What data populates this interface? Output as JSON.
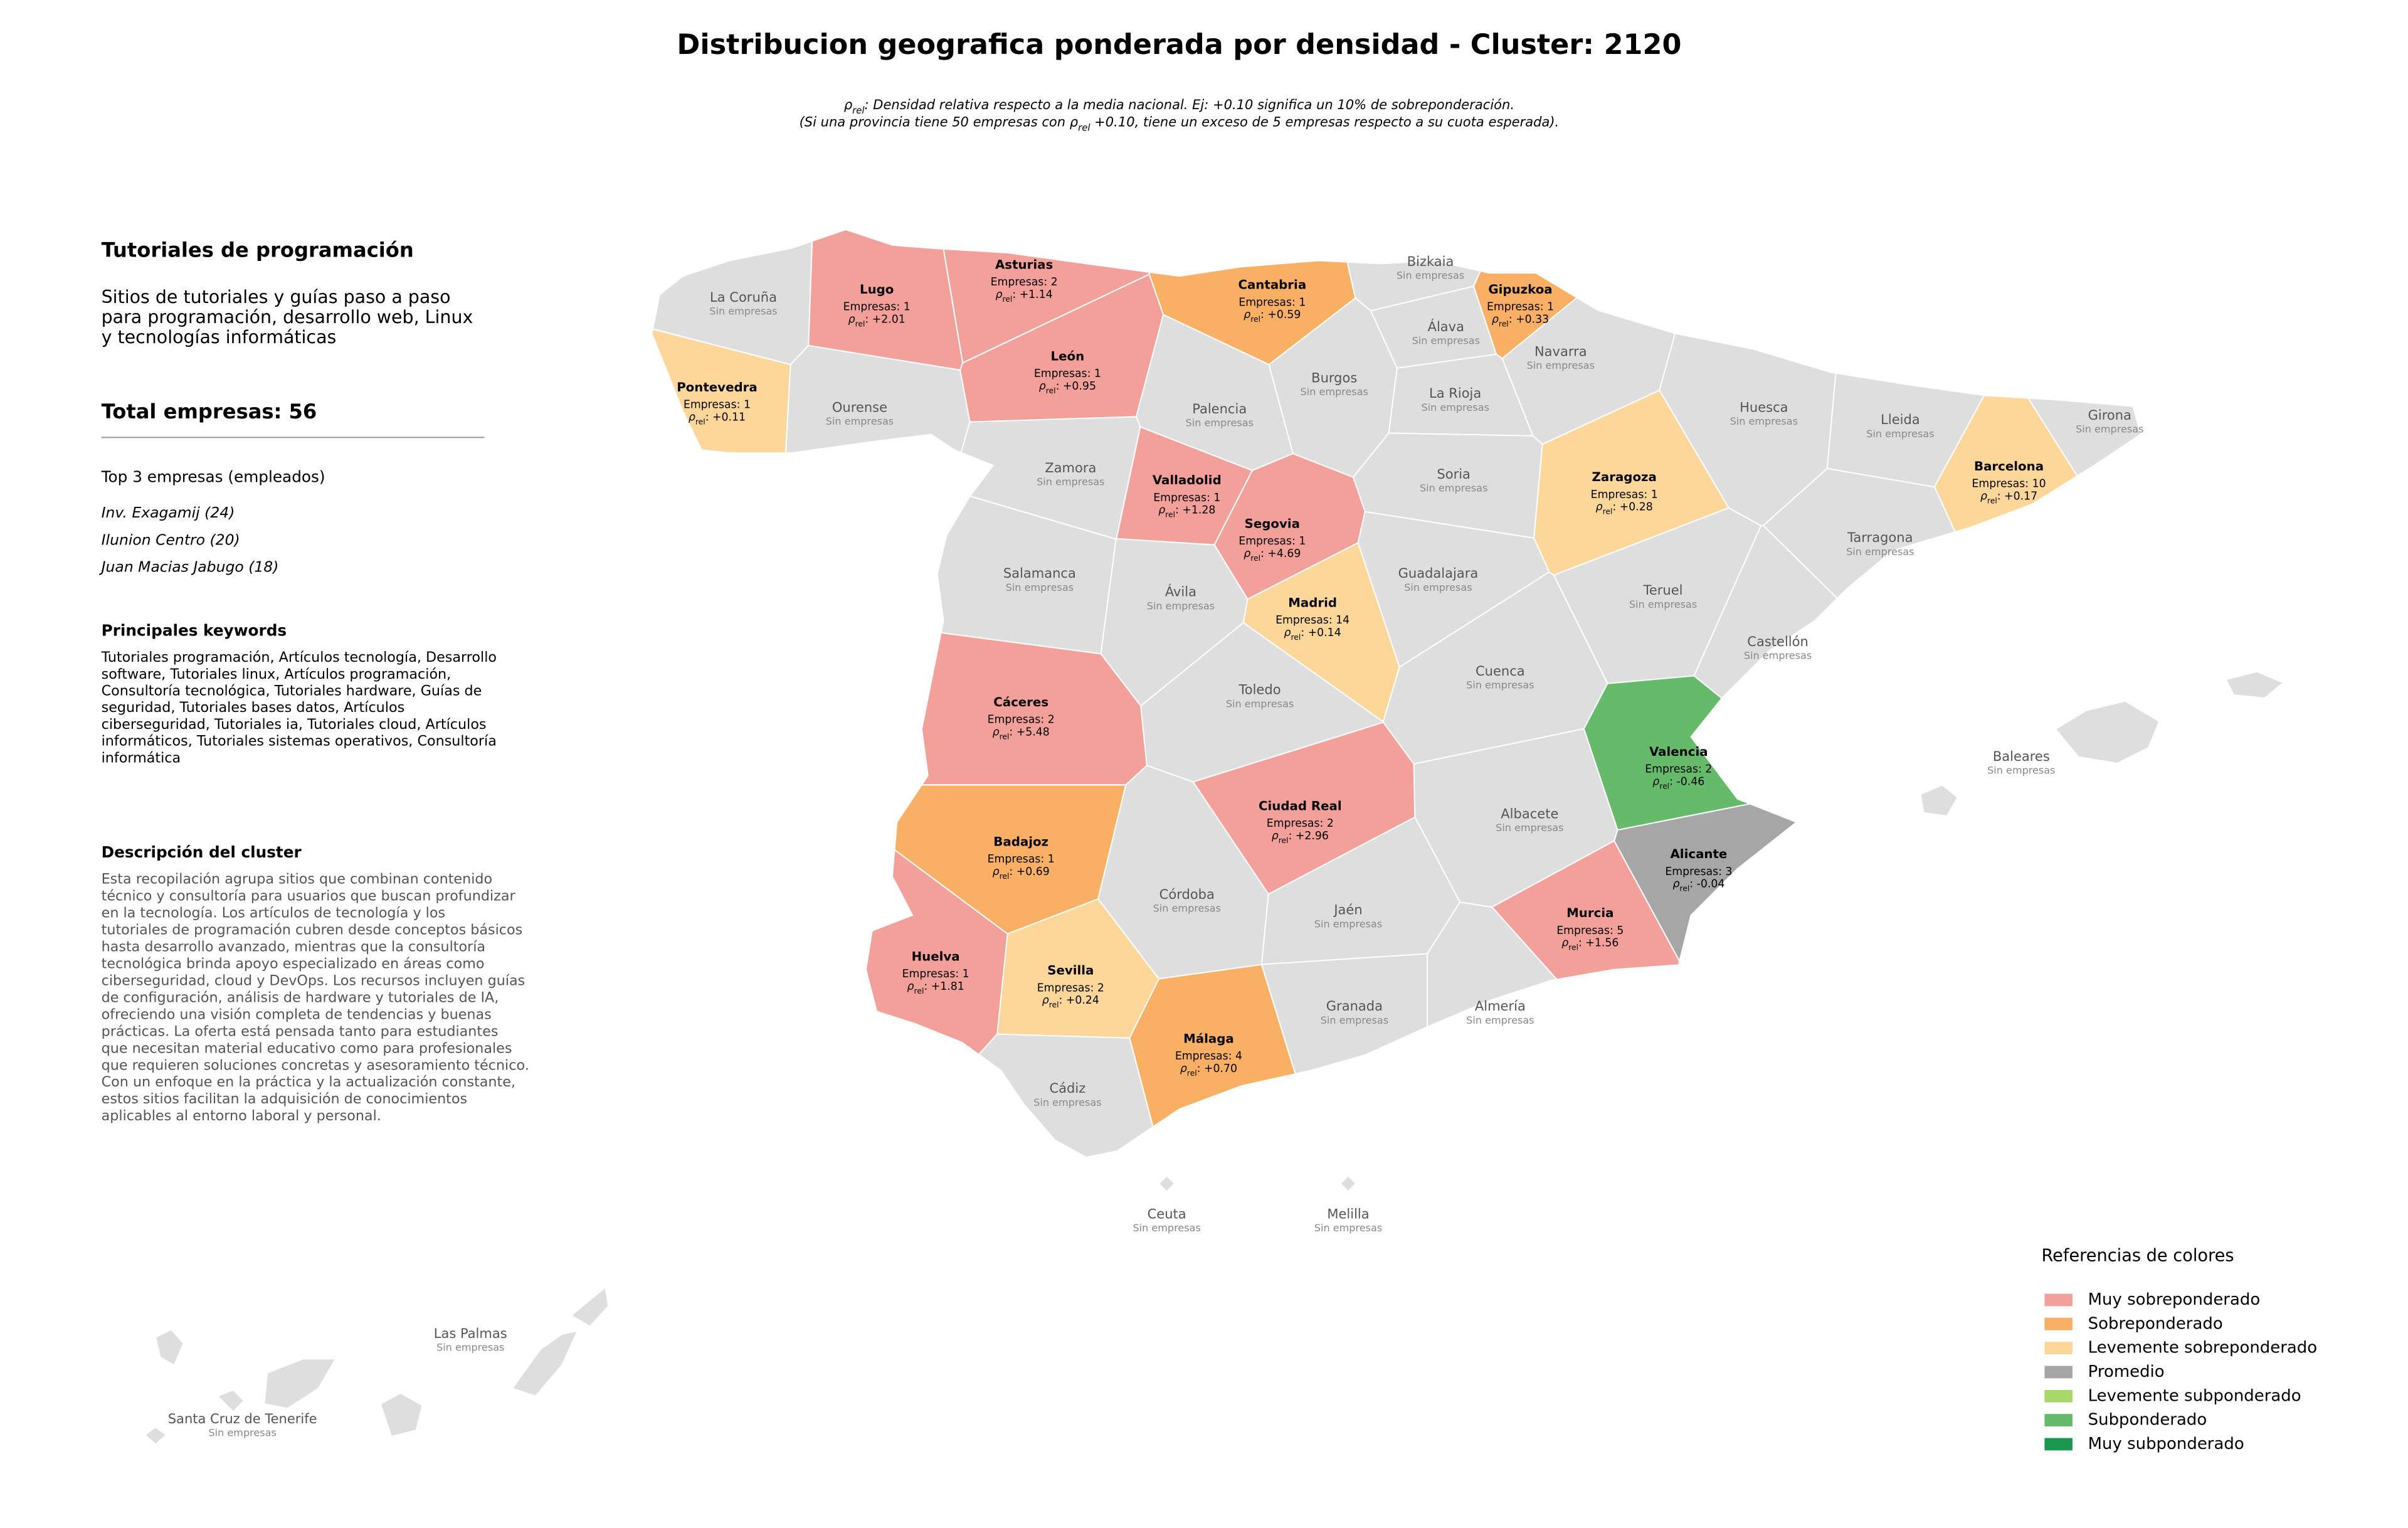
{
  "title": "Distribucion geografica ponderada por densidad - Cluster: 2120",
  "rho_label": {
    "symbol": "ρ",
    "subscript": "rel",
    "separator": ": "
  },
  "subtitle": [
    [
      {
        "text": "ρ"
      },
      {
        "sub": "rel"
      },
      {
        "text": ": Densidad relativa respecto a la media nacional. Ej: +0.10 significa un 10% de sobreponderación."
      }
    ],
    [
      {
        "text": "(Si una provincia tiene 50 empresas con ρ"
      },
      {
        "sub": "rel"
      },
      {
        "text": " +0.10, tiene un exceso de 5 empresas respecto a su cuota esperada)."
      }
    ]
  ],
  "sidebar": {
    "title": "Tutoriales de programación",
    "description": [
      "Sitios de tutoriales y guías paso a paso",
      "para programación, desarrollo web, Linux",
      "y tecnologías informáticas"
    ],
    "total": "Total empresas: 56",
    "top_title": "Top 3 empresas (empleados)",
    "top": [
      "Inv. Exagamij (24)",
      "Ilunion Centro (20)",
      "Juan Macias Jabugo (18)"
    ],
    "keywords_title": "Principales keywords",
    "keywords": [
      "Tutoriales programación, Artículos tecnología, Desarrollo",
      "software, Tutoriales linux, Artículos programación,",
      "Consultoría tecnológica, Tutoriales hardware, Guías de",
      "seguridad, Tutoriales bases datos, Artículos",
      "ciberseguridad, Tutoriales ia, Tutoriales cloud, Artículos",
      "informáticos, Tutoriales sistemas operativos, Consultoría",
      "informática"
    ],
    "cluster_title": "Descripción del cluster",
    "cluster": [
      "Esta recopilación agrupa sitios que combinan contenido",
      "técnico y consultoría para usuarios que buscan profundizar",
      "en la tecnología. Los artículos de tecnología y los",
      "tutoriales de programación cubren desde conceptos básicos",
      "hasta desarrollo avanzado, mientras que la consultoría",
      "tecnológica brinda apoyo especializado en áreas como",
      "ciberseguridad, cloud y DevOps. Los recursos incluyen guías",
      "de configuración, análisis de hardware y tutoriales de IA,",
      "ofreciendo una visión completa de tendencias y buenas",
      "prácticas. La oferta está pensada tanto para estudiantes",
      "que necesitan material educativo como para profesionales",
      "que requieren soluciones concretas y asesoramiento técnico.",
      "Con un enfoque en la práctica y la actualización constante,",
      "estos sitios facilitan la adquisición de conocimientos",
      "aplicables al entorno laboral y personal."
    ]
  },
  "provinces": [
    {
      "name": "La Coruña",
      "color": "#dedede",
      "status": "Sin empresas"
    },
    {
      "name": "Lugo",
      "color": "#f4a09a",
      "empresas": "Empresas: 1",
      "rho": "+2.01"
    },
    {
      "name": "Asturias",
      "color": "#f4a09a",
      "empresas": "Empresas: 2",
      "rho": "+1.14"
    },
    {
      "name": "Cantabria",
      "color": "#f9b065",
      "empresas": "Empresas: 1",
      "rho": "+0.59"
    },
    {
      "name": "Bizkaia",
      "color": "#dedede",
      "status": "Sin empresas"
    },
    {
      "name": "Gipuzkoa",
      "color": "#f9b065",
      "empresas": "Empresas: 1",
      "rho": "+0.33"
    },
    {
      "name": "Pontevedra",
      "color": "#fdd69a",
      "empresas": "Empresas: 1",
      "rho": "+0.11"
    },
    {
      "name": "Ourense",
      "color": "#dedede",
      "status": "Sin empresas"
    },
    {
      "name": "León",
      "color": "#f4a09a",
      "empresas": "Empresas: 1",
      "rho": "+0.95"
    },
    {
      "name": "Palencia",
      "color": "#dedede",
      "status": "Sin empresas"
    },
    {
      "name": "Burgos",
      "color": "#dedede",
      "status": "Sin empresas"
    },
    {
      "name": "Álava",
      "color": "#dedede",
      "status": "Sin empresas"
    },
    {
      "name": "Navarra",
      "color": "#dedede",
      "status": "Sin empresas"
    },
    {
      "name": "La Rioja",
      "color": "#dedede",
      "status": "Sin empresas"
    },
    {
      "name": "Huesca",
      "color": "#dedede",
      "status": "Sin empresas"
    },
    {
      "name": "Lleida",
      "color": "#dedede",
      "status": "Sin empresas"
    },
    {
      "name": "Girona",
      "color": "#dedede",
      "status": "Sin empresas"
    },
    {
      "name": "Barcelona",
      "color": "#fdd69a",
      "empresas": "Empresas: 10",
      "rho": "+0.17"
    },
    {
      "name": "Zamora",
      "color": "#dedede",
      "status": "Sin empresas"
    },
    {
      "name": "Valladolid",
      "color": "#f4a09a",
      "empresas": "Empresas: 1",
      "rho": "+1.28"
    },
    {
      "name": "Soria",
      "color": "#dedede",
      "status": "Sin empresas"
    },
    {
      "name": "Zaragoza",
      "color": "#fdd69a",
      "empresas": "Empresas: 1",
      "rho": "+0.28"
    },
    {
      "name": "Tarragona",
      "color": "#dedede",
      "status": "Sin empresas"
    },
    {
      "name": "Salamanca",
      "color": "#dedede",
      "status": "Sin empresas"
    },
    {
      "name": "Segovia",
      "color": "#f4a09a",
      "empresas": "Empresas: 1",
      "rho": "+4.69"
    },
    {
      "name": "Ávila",
      "color": "#dedede",
      "status": "Sin empresas"
    },
    {
      "name": "Guadalajara",
      "color": "#dedede",
      "status": "Sin empresas"
    },
    {
      "name": "Teruel",
      "color": "#dedede",
      "status": "Sin empresas"
    },
    {
      "name": "Madrid",
      "color": "#fdd69a",
      "empresas": "Empresas: 14",
      "rho": "+0.14"
    },
    {
      "name": "Castellón",
      "color": "#dedede",
      "status": "Sin empresas"
    },
    {
      "name": "Cáceres",
      "color": "#f4a09a",
      "empresas": "Empresas: 2",
      "rho": "+5.48"
    },
    {
      "name": "Toledo",
      "color": "#dedede",
      "status": "Sin empresas"
    },
    {
      "name": "Cuenca",
      "color": "#dedede",
      "status": "Sin empresas"
    },
    {
      "name": "Valencia",
      "color": "#66bb6a",
      "empresas": "Empresas: 2",
      "rho": "-0.46"
    },
    {
      "name": "Ciudad Real",
      "color": "#f4a09a",
      "empresas": "Empresas: 2",
      "rho": "+2.96"
    },
    {
      "name": "Albacete",
      "color": "#dedede",
      "status": "Sin empresas"
    },
    {
      "name": "Badajoz",
      "color": "#f9b065",
      "empresas": "Empresas: 1",
      "rho": "+0.69"
    },
    {
      "name": "Alicante",
      "color": "#a6a6a6",
      "empresas": "Empresas: 3",
      "rho": "-0.04"
    },
    {
      "name": "Córdoba",
      "color": "#dedede",
      "status": "Sin empresas"
    },
    {
      "name": "Jaén",
      "color": "#dedede",
      "status": "Sin empresas"
    },
    {
      "name": "Murcia",
      "color": "#f4a09a",
      "empresas": "Empresas: 5",
      "rho": "+1.56"
    },
    {
      "name": "Huelva",
      "color": "#f4a09a",
      "empresas": "Empresas: 1",
      "rho": "+1.81"
    },
    {
      "name": "Sevilla",
      "color": "#fdd69a",
      "empresas": "Empresas: 2",
      "rho": "+0.24"
    },
    {
      "name": "Granada",
      "color": "#dedede",
      "status": "Sin empresas"
    },
    {
      "name": "Almería",
      "color": "#dedede",
      "status": "Sin empresas"
    },
    {
      "name": "Málaga",
      "color": "#f9b065",
      "empresas": "Empresas: 4",
      "rho": "+0.70"
    },
    {
      "name": "Cádiz",
      "color": "#dedede",
      "status": "Sin empresas"
    },
    {
      "name": "Baleares",
      "color": "#dedede",
      "status": "Sin empresas"
    },
    {
      "name": "Ceuta",
      "color": "#dedede",
      "status": "Sin empresas"
    },
    {
      "name": "Melilla",
      "color": "#dedede",
      "status": "Sin empresas"
    },
    {
      "name": "Las Palmas",
      "color": "#dedede",
      "status": "Sin empresas"
    },
    {
      "name": "Santa Cruz de Tenerife",
      "color": "#dedede",
      "status": "Sin empresas"
    }
  ],
  "legend": {
    "title": "Referencias de colores",
    "items": [
      {
        "label": "Muy sobreponderado",
        "color": "#f4a09a"
      },
      {
        "label": "Sobreponderado",
        "color": "#f9b065"
      },
      {
        "label": "Levemente sobreponderado",
        "color": "#fdd69a"
      },
      {
        "label": "Promedio",
        "color": "#a6a6a6"
      },
      {
        "label": "Levemente subponderado",
        "color": "#a8d66a"
      },
      {
        "label": "Subponderado",
        "color": "#66bb6a"
      },
      {
        "label": "Muy subponderado",
        "color": "#1a9850"
      }
    ]
  }
}
